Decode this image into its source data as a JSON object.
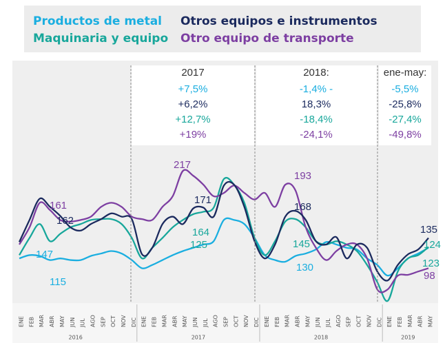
{
  "chart_data": {
    "type": "line",
    "categories": [
      "ENE",
      "FEB",
      "MAR",
      "ABR",
      "MAY",
      "JUN",
      "JUL",
      "AGO",
      "SEP",
      "OCT",
      "NOV",
      "DIC",
      "ENE",
      "FEB",
      "MAR",
      "ABR",
      "MAY",
      "JUN",
      "JUL",
      "AGO",
      "SEP",
      "OCT",
      "NOV",
      "DIC",
      "ENE",
      "FEB",
      "MAR",
      "ABR",
      "MAY",
      "JUN",
      "JUL",
      "AGO",
      "SEP",
      "OCT",
      "NOV",
      "DIC",
      "ENE",
      "FEB",
      "MAR",
      "ABR",
      "MAY"
    ],
    "years": [
      "2016",
      "2017",
      "2018",
      "2019"
    ],
    "series": [
      {
        "name": "Productos de metal",
        "color": "#1aaee0",
        "values": [
          110,
          114,
          113,
          108,
          110,
          108,
          108,
          113,
          116,
          119,
          116,
          108,
          98,
          102,
          108,
          114,
          119,
          123,
          127,
          131,
          157,
          157,
          152,
          135,
          114,
          108,
          106,
          113,
          116,
          121,
          130,
          127,
          123,
          121,
          110,
          102,
          89,
          98,
          110,
          116,
          123
        ]
      },
      {
        "name": "Otros equipos e instrumentos",
        "color": "#1b2a5e",
        "values": [
          130,
          157,
          183,
          173,
          162,
          148,
          144,
          152,
          158,
          165,
          161,
          158,
          115,
          123,
          152,
          161,
          152,
          171,
          172,
          161,
          199,
          200,
          173,
          131,
          110,
          127,
          161,
          168,
          157,
          131,
          127,
          136,
          110,
          127,
          123,
          94,
          83,
          102,
          115,
          121,
          135
        ]
      },
      {
        "name": "Maquinaria y equipo",
        "color": "#18a79b",
        "values": [
          114,
          135,
          152,
          131,
          140,
          148,
          152,
          157,
          158,
          158,
          152,
          135,
          110,
          123,
          135,
          148,
          157,
          164,
          167,
          172,
          207,
          200,
          178,
          135,
          114,
          131,
          155,
          158,
          148,
          131,
          127,
          131,
          127,
          119,
          102,
          81,
          58,
          94,
          110,
          114,
          124
        ]
      },
      {
        "name": "Otro equipo de transporte",
        "color": "#7d3fa2",
        "values": [
          127,
          148,
          178,
          169,
          157,
          155,
          157,
          161,
          173,
          178,
          173,
          161,
          158,
          157,
          173,
          186,
          217,
          211,
          200,
          186,
          190,
          199,
          190,
          182,
          190,
          173,
          200,
          193,
          148,
          123,
          108,
          119,
          127,
          127,
          110,
          72,
          72,
          89,
          90,
          94,
          98
        ]
      }
    ],
    "summary": [
      {
        "title": "2017",
        "values": [
          "+7,5%",
          "+6,2%",
          "+12,7%",
          "+19%"
        ]
      },
      {
        "title": "2018:",
        "values": [
          "-1,4% -",
          "18,3%",
          "-18,4%",
          "-24,1%"
        ]
      },
      {
        "title": "ene-may:",
        "values": [
          "-5,5%",
          "-25,8%",
          "-27,4%",
          "-49,8%"
        ]
      }
    ],
    "annotations": [
      "161",
      "162",
      "147",
      "115",
      "217",
      "171",
      "164",
      "125",
      "193",
      "168",
      "145",
      "130",
      "135",
      "124",
      "123",
      "98"
    ]
  }
}
